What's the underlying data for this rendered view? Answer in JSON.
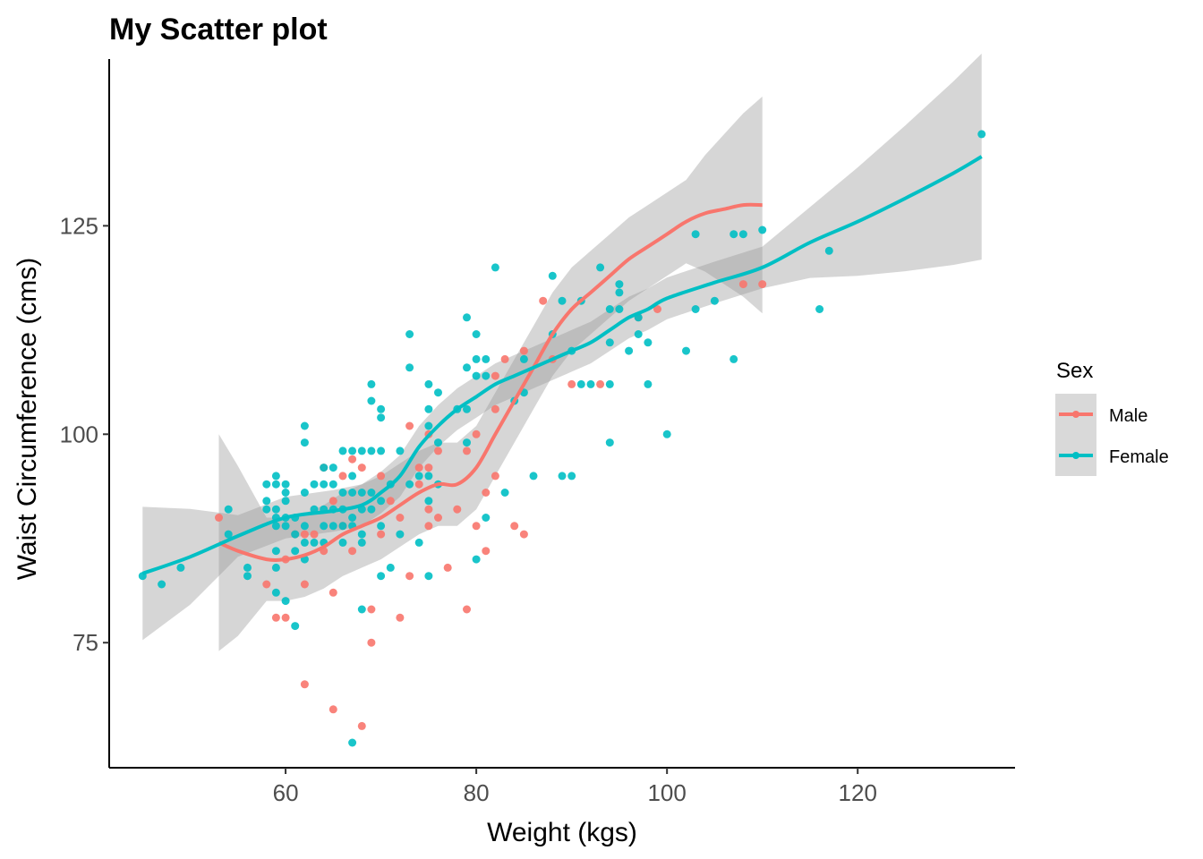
{
  "chart_data": {
    "type": "scatter",
    "title": "My Scatter plot",
    "xlabel": "Weight (kgs)",
    "ylabel": "Waist Circumference (cms)",
    "xlim": [
      41.5,
      136.5
    ],
    "ylim": [
      60,
      145
    ],
    "xticks": [
      60,
      80,
      100,
      120
    ],
    "yticks": [
      75,
      100,
      125
    ],
    "grid": false,
    "legend": {
      "title": "Sex",
      "placement": "right",
      "entries": [
        "Male",
        "Female"
      ]
    },
    "series": [
      {
        "name": "Male",
        "color": "#F8766D",
        "points": [
          [
            53,
            90
          ],
          [
            58,
            82
          ],
          [
            59,
            78
          ],
          [
            60,
            78
          ],
          [
            60,
            85
          ],
          [
            61,
            88
          ],
          [
            62,
            70
          ],
          [
            62,
            82
          ],
          [
            62,
            88
          ],
          [
            63,
            88
          ],
          [
            64,
            96
          ],
          [
            64,
            86
          ],
          [
            65,
            92
          ],
          [
            65,
            81
          ],
          [
            65,
            67
          ],
          [
            66,
            95
          ],
          [
            66,
            89
          ],
          [
            67,
            97
          ],
          [
            67,
            86
          ],
          [
            68,
            96
          ],
          [
            68,
            65
          ],
          [
            69,
            79
          ],
          [
            69,
            75
          ],
          [
            70,
            95
          ],
          [
            70,
            88
          ],
          [
            71,
            92
          ],
          [
            72,
            78
          ],
          [
            72,
            90
          ],
          [
            73,
            83
          ],
          [
            73,
            101
          ],
          [
            74,
            96
          ],
          [
            74,
            94
          ],
          [
            75,
            100
          ],
          [
            75,
            89
          ],
          [
            75,
            91
          ],
          [
            75,
            96
          ],
          [
            76,
            90
          ],
          [
            76,
            98
          ],
          [
            77,
            84
          ],
          [
            78,
            91
          ],
          [
            79,
            79
          ],
          [
            79,
            98
          ],
          [
            80,
            89
          ],
          [
            80,
            100
          ],
          [
            81,
            93
          ],
          [
            81,
            86
          ],
          [
            82,
            107
          ],
          [
            82,
            103
          ],
          [
            82,
            95
          ],
          [
            83,
            109
          ],
          [
            84,
            89
          ],
          [
            85,
            110
          ],
          [
            85,
            88
          ],
          [
            87,
            116
          ],
          [
            88,
            109
          ],
          [
            90,
            106
          ],
          [
            93,
            106
          ],
          [
            97,
            114
          ],
          [
            99,
            115
          ],
          [
            108,
            118
          ],
          [
            110,
            118
          ]
        ],
        "smooth": [
          [
            53,
            87
          ],
          [
            55,
            86
          ],
          [
            58,
            85
          ],
          [
            60,
            85
          ],
          [
            62,
            85.5
          ],
          [
            64,
            86.5
          ],
          [
            66,
            88
          ],
          [
            68,
            89
          ],
          [
            70,
            90
          ],
          [
            72,
            91.5
          ],
          [
            74,
            93
          ],
          [
            76,
            94
          ],
          [
            78,
            94
          ],
          [
            80,
            96
          ],
          [
            82,
            100
          ],
          [
            84,
            104
          ],
          [
            86,
            108
          ],
          [
            88,
            112
          ],
          [
            90,
            115
          ],
          [
            92,
            117
          ],
          [
            94,
            119
          ],
          [
            96,
            121
          ],
          [
            98,
            122.5
          ],
          [
            100,
            124
          ],
          [
            102,
            125.5
          ],
          [
            104,
            126.5
          ],
          [
            106,
            127
          ],
          [
            108,
            127.5
          ],
          [
            110,
            127.5
          ]
        ]
      },
      {
        "name": "Female",
        "color": "#00BFC4",
        "points": [
          [
            45,
            83
          ],
          [
            47,
            82
          ],
          [
            49,
            84
          ],
          [
            54,
            91
          ],
          [
            54,
            88
          ],
          [
            56,
            84
          ],
          [
            56,
            83
          ],
          [
            58,
            94
          ],
          [
            58,
            91
          ],
          [
            58,
            92
          ],
          [
            59,
            95
          ],
          [
            59,
            94
          ],
          [
            59,
            91
          ],
          [
            59,
            90
          ],
          [
            59,
            89
          ],
          [
            59,
            86
          ],
          [
            59,
            84
          ],
          [
            59,
            81
          ],
          [
            60,
            94
          ],
          [
            60,
            93
          ],
          [
            60,
            92
          ],
          [
            60,
            90
          ],
          [
            60,
            89
          ],
          [
            60,
            80
          ],
          [
            61,
            90
          ],
          [
            61,
            88
          ],
          [
            61,
            86
          ],
          [
            61,
            77
          ],
          [
            62,
            101
          ],
          [
            62,
            99
          ],
          [
            62,
            93
          ],
          [
            62,
            89
          ],
          [
            62,
            87
          ],
          [
            62,
            85
          ],
          [
            63,
            94
          ],
          [
            63,
            91
          ],
          [
            63,
            87
          ],
          [
            64,
            96
          ],
          [
            64,
            94
          ],
          [
            64,
            91
          ],
          [
            64,
            89
          ],
          [
            64,
            87
          ],
          [
            65,
            96
          ],
          [
            65,
            94
          ],
          [
            65,
            91
          ],
          [
            65,
            89
          ],
          [
            66,
            98
          ],
          [
            66,
            93
          ],
          [
            66,
            91
          ],
          [
            66,
            89
          ],
          [
            66,
            87
          ],
          [
            67,
            98
          ],
          [
            67,
            95
          ],
          [
            67,
            93
          ],
          [
            67,
            90
          ],
          [
            67,
            89
          ],
          [
            67,
            63
          ],
          [
            68,
            98
          ],
          [
            68,
            93
          ],
          [
            68,
            91
          ],
          [
            68,
            88
          ],
          [
            68,
            87
          ],
          [
            68,
            79
          ],
          [
            69,
            106
          ],
          [
            69,
            104
          ],
          [
            69,
            98
          ],
          [
            69,
            93
          ],
          [
            69,
            91
          ],
          [
            70,
            103
          ],
          [
            70,
            102
          ],
          [
            70,
            98
          ],
          [
            70,
            92
          ],
          [
            70,
            89
          ],
          [
            70,
            83
          ],
          [
            71,
            94
          ],
          [
            71,
            84
          ],
          [
            72,
            98
          ],
          [
            72,
            88
          ],
          [
            73,
            112
          ],
          [
            73,
            108
          ],
          [
            73,
            94
          ],
          [
            74,
            95
          ],
          [
            74,
            87
          ],
          [
            75,
            106
          ],
          [
            75,
            103
          ],
          [
            75,
            101
          ],
          [
            75,
            95
          ],
          [
            75,
            92
          ],
          [
            75,
            83
          ],
          [
            76,
            105
          ],
          [
            76,
            99
          ],
          [
            76,
            94
          ],
          [
            78,
            103
          ],
          [
            79,
            114
          ],
          [
            79,
            108
          ],
          [
            79,
            103
          ],
          [
            79,
            99
          ],
          [
            80,
            112
          ],
          [
            80,
            109
          ],
          [
            80,
            107
          ],
          [
            80,
            85
          ],
          [
            81,
            109
          ],
          [
            81,
            107
          ],
          [
            81,
            90
          ],
          [
            82,
            120
          ],
          [
            83,
            93
          ],
          [
            84,
            104
          ],
          [
            85,
            105
          ],
          [
            85,
            109
          ],
          [
            86,
            95
          ],
          [
            88,
            119
          ],
          [
            88,
            112
          ],
          [
            89,
            116
          ],
          [
            89,
            95
          ],
          [
            90,
            95
          ],
          [
            90,
            110
          ],
          [
            91,
            116
          ],
          [
            91,
            106
          ],
          [
            92,
            106
          ],
          [
            93,
            120
          ],
          [
            94,
            115
          ],
          [
            94,
            111
          ],
          [
            94,
            106
          ],
          [
            94,
            99
          ],
          [
            95,
            118
          ],
          [
            95,
            115
          ],
          [
            95,
            117
          ],
          [
            96,
            110
          ],
          [
            97,
            114
          ],
          [
            97,
            112
          ],
          [
            98,
            106
          ],
          [
            98,
            111
          ],
          [
            100,
            100
          ],
          [
            102,
            110
          ],
          [
            103,
            124
          ],
          [
            103,
            115
          ],
          [
            105,
            116
          ],
          [
            107,
            124
          ],
          [
            107,
            109
          ],
          [
            108,
            124
          ],
          [
            110,
            124.5
          ],
          [
            116,
            115
          ],
          [
            117,
            122
          ],
          [
            133,
            136
          ]
        ],
        "smooth": [
          [
            45,
            83.3
          ],
          [
            50,
            85.3
          ],
          [
            55,
            87.8
          ],
          [
            60,
            90
          ],
          [
            65,
            90.8
          ],
          [
            68,
            91.5
          ],
          [
            70,
            93
          ],
          [
            72,
            95
          ],
          [
            74,
            98.5
          ],
          [
            76,
            101
          ],
          [
            78,
            103
          ],
          [
            80,
            104.5
          ],
          [
            82,
            106
          ],
          [
            84,
            107
          ],
          [
            86,
            108
          ],
          [
            88,
            109
          ],
          [
            90,
            110
          ],
          [
            92,
            111
          ],
          [
            94,
            112.5
          ],
          [
            96,
            114
          ],
          [
            98,
            115
          ],
          [
            100,
            116.3
          ],
          [
            105,
            118.2
          ],
          [
            110,
            120
          ],
          [
            115,
            123
          ],
          [
            120,
            125.5
          ],
          [
            125,
            128.3
          ],
          [
            130,
            131.3
          ],
          [
            133,
            133.3
          ]
        ],
        "band_note": "confidence band"
      }
    ]
  }
}
